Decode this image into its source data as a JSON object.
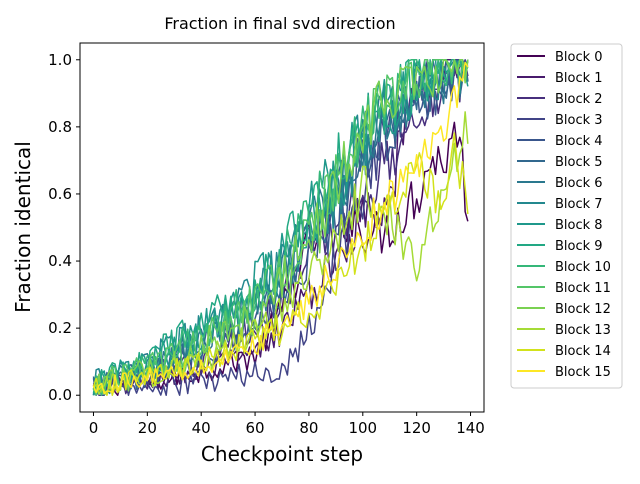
{
  "chart_data": {
    "type": "line",
    "title": "Fraction in final svd direction",
    "xlabel": "Checkpoint step",
    "ylabel": "Fraction identical",
    "xlim": [
      -5,
      145
    ],
    "ylim": [
      -0.05,
      1.05
    ],
    "xticks": [
      0,
      20,
      40,
      60,
      80,
      100,
      120,
      140
    ],
    "yticks": [
      0.0,
      0.2,
      0.4,
      0.6,
      0.8,
      1.0
    ],
    "xtick_labels": [
      "0",
      "20",
      "40",
      "60",
      "80",
      "100",
      "120",
      "140"
    ],
    "ytick_labels": [
      "0.0",
      "0.2",
      "0.4",
      "0.6",
      "0.8",
      "1.0"
    ],
    "legend_position": "outside-right",
    "colormap": "viridis",
    "x_range": [
      0,
      139
    ],
    "series": [
      {
        "name": "Block 0",
        "color": "#440154",
        "anchors": [
          [
            0,
            0.02
          ],
          [
            20,
            0.04
          ],
          [
            40,
            0.07
          ],
          [
            60,
            0.12
          ],
          [
            70,
            0.25
          ],
          [
            80,
            0.45
          ],
          [
            90,
            0.55
          ],
          [
            100,
            0.5
          ],
          [
            105,
            0.48
          ],
          [
            110,
            0.5
          ],
          [
            115,
            0.55
          ],
          [
            120,
            0.6
          ],
          [
            125,
            0.7
          ],
          [
            130,
            0.7
          ],
          [
            135,
            0.8
          ],
          [
            139,
            0.55
          ]
        ],
        "noise": 0.05
      },
      {
        "name": "Block 1",
        "color": "#481a6c",
        "anchors": [
          [
            0,
            0.01
          ],
          [
            20,
            0.04
          ],
          [
            40,
            0.07
          ],
          [
            60,
            0.12
          ],
          [
            70,
            0.2
          ],
          [
            80,
            0.3
          ],
          [
            90,
            0.4
          ],
          [
            100,
            0.55
          ],
          [
            110,
            0.6
          ],
          [
            120,
            0.95
          ],
          [
            125,
            1.0
          ],
          [
            130,
            1.0
          ],
          [
            139,
            1.0
          ]
        ],
        "noise": 0.05
      },
      {
        "name": "Block 2",
        "color": "#472f7d",
        "anchors": [
          [
            0,
            0.02
          ],
          [
            20,
            0.05
          ],
          [
            40,
            0.1
          ],
          [
            60,
            0.2
          ],
          [
            70,
            0.3
          ],
          [
            80,
            0.4
          ],
          [
            90,
            0.5
          ],
          [
            100,
            0.6
          ],
          [
            110,
            0.7
          ],
          [
            120,
            0.85
          ],
          [
            130,
            0.9
          ],
          [
            139,
            0.95
          ]
        ],
        "noise": 0.05
      },
      {
        "name": "Block 3",
        "color": "#414487",
        "anchors": [
          [
            0,
            0.01
          ],
          [
            20,
            0.02
          ],
          [
            40,
            0.04
          ],
          [
            50,
            0.05
          ],
          [
            60,
            0.06
          ],
          [
            70,
            0.08
          ],
          [
            80,
            0.2
          ],
          [
            90,
            0.4
          ],
          [
            100,
            0.6
          ],
          [
            110,
            0.8
          ],
          [
            120,
            0.9
          ],
          [
            130,
            0.95
          ],
          [
            139,
            0.99
          ]
        ],
        "noise": 0.06
      },
      {
        "name": "Block 4",
        "color": "#39568c",
        "anchors": [
          [
            0,
            0.02
          ],
          [
            20,
            0.06
          ],
          [
            40,
            0.12
          ],
          [
            60,
            0.22
          ],
          [
            70,
            0.3
          ],
          [
            80,
            0.42
          ],
          [
            90,
            0.55
          ],
          [
            100,
            0.7
          ],
          [
            110,
            0.8
          ],
          [
            120,
            0.88
          ],
          [
            130,
            0.92
          ],
          [
            139,
            0.95
          ]
        ],
        "noise": 0.06
      },
      {
        "name": "Block 5",
        "color": "#31688e",
        "anchors": [
          [
            0,
            0.02
          ],
          [
            20,
            0.07
          ],
          [
            40,
            0.14
          ],
          [
            60,
            0.24
          ],
          [
            70,
            0.32
          ],
          [
            80,
            0.45
          ],
          [
            90,
            0.58
          ],
          [
            100,
            0.72
          ],
          [
            110,
            0.82
          ],
          [
            120,
            0.9
          ],
          [
            130,
            0.94
          ],
          [
            139,
            0.96
          ]
        ],
        "noise": 0.06
      },
      {
        "name": "Block 6",
        "color": "#2a788e",
        "anchors": [
          [
            0,
            0.03
          ],
          [
            20,
            0.08
          ],
          [
            40,
            0.16
          ],
          [
            60,
            0.26
          ],
          [
            70,
            0.35
          ],
          [
            80,
            0.48
          ],
          [
            90,
            0.6
          ],
          [
            100,
            0.75
          ],
          [
            110,
            0.85
          ],
          [
            120,
            0.92
          ],
          [
            130,
            0.95
          ],
          [
            139,
            0.97
          ]
        ],
        "noise": 0.07
      },
      {
        "name": "Block 7",
        "color": "#23888e",
        "anchors": [
          [
            0,
            0.03
          ],
          [
            20,
            0.09
          ],
          [
            40,
            0.18
          ],
          [
            60,
            0.3
          ],
          [
            70,
            0.38
          ],
          [
            80,
            0.5
          ],
          [
            90,
            0.62
          ],
          [
            100,
            0.75
          ],
          [
            110,
            0.85
          ],
          [
            120,
            0.92
          ],
          [
            130,
            0.96
          ],
          [
            139,
            0.98
          ]
        ],
        "noise": 0.07
      },
      {
        "name": "Block 8",
        "color": "#1f988b",
        "anchors": [
          [
            0,
            0.03
          ],
          [
            20,
            0.09
          ],
          [
            40,
            0.18
          ],
          [
            60,
            0.32
          ],
          [
            70,
            0.4
          ],
          [
            80,
            0.52
          ],
          [
            90,
            0.64
          ],
          [
            100,
            0.78
          ],
          [
            110,
            0.86
          ],
          [
            120,
            0.92
          ],
          [
            130,
            0.96
          ],
          [
            139,
            0.98
          ]
        ],
        "noise": 0.07
      },
      {
        "name": "Block 9",
        "color": "#22a884",
        "anchors": [
          [
            0,
            0.03
          ],
          [
            20,
            0.1
          ],
          [
            40,
            0.2
          ],
          [
            60,
            0.33
          ],
          [
            70,
            0.42
          ],
          [
            80,
            0.54
          ],
          [
            90,
            0.66
          ],
          [
            100,
            0.8
          ],
          [
            110,
            0.88
          ],
          [
            120,
            0.94
          ],
          [
            130,
            0.97
          ],
          [
            139,
            0.99
          ]
        ],
        "noise": 0.07
      },
      {
        "name": "Block 10",
        "color": "#35b779",
        "anchors": [
          [
            0,
            0.03
          ],
          [
            20,
            0.09
          ],
          [
            40,
            0.18
          ],
          [
            60,
            0.3
          ],
          [
            70,
            0.4
          ],
          [
            80,
            0.52
          ],
          [
            90,
            0.66
          ],
          [
            100,
            0.8
          ],
          [
            110,
            0.9
          ],
          [
            120,
            0.95
          ],
          [
            130,
            0.98
          ],
          [
            139,
            1.0
          ]
        ],
        "noise": 0.06
      },
      {
        "name": "Block 11",
        "color": "#54c568",
        "anchors": [
          [
            0,
            0.03
          ],
          [
            20,
            0.08
          ],
          [
            40,
            0.16
          ],
          [
            60,
            0.28
          ],
          [
            70,
            0.38
          ],
          [
            80,
            0.5
          ],
          [
            90,
            0.64
          ],
          [
            100,
            0.8
          ],
          [
            110,
            0.9
          ],
          [
            120,
            0.95
          ],
          [
            130,
            0.98
          ],
          [
            139,
            1.0
          ]
        ],
        "noise": 0.06
      },
      {
        "name": "Block 12",
        "color": "#7ad151",
        "anchors": [
          [
            0,
            0.02
          ],
          [
            20,
            0.07
          ],
          [
            40,
            0.14
          ],
          [
            60,
            0.24
          ],
          [
            70,
            0.34
          ],
          [
            80,
            0.46
          ],
          [
            90,
            0.6
          ],
          [
            100,
            0.78
          ],
          [
            110,
            0.9
          ],
          [
            120,
            0.95
          ],
          [
            130,
            0.97
          ],
          [
            139,
            1.0
          ]
        ],
        "noise": 0.06
      },
      {
        "name": "Block 13",
        "color": "#a5db36",
        "anchors": [
          [
            0,
            0.02
          ],
          [
            20,
            0.05
          ],
          [
            40,
            0.1
          ],
          [
            60,
            0.18
          ],
          [
            70,
            0.25
          ],
          [
            80,
            0.35
          ],
          [
            90,
            0.48
          ],
          [
            100,
            0.62
          ],
          [
            110,
            0.55
          ],
          [
            120,
            0.4
          ],
          [
            130,
            0.6
          ],
          [
            139,
            0.8
          ]
        ],
        "noise": 0.05
      },
      {
        "name": "Block 14",
        "color": "#d2e21b",
        "anchors": [
          [
            0,
            0.02
          ],
          [
            20,
            0.05
          ],
          [
            40,
            0.1
          ],
          [
            60,
            0.16
          ],
          [
            70,
            0.2
          ],
          [
            80,
            0.25
          ],
          [
            90,
            0.32
          ],
          [
            100,
            0.45
          ],
          [
            110,
            0.6
          ],
          [
            120,
            0.7
          ],
          [
            130,
            0.6
          ],
          [
            135,
            0.75
          ],
          [
            139,
            0.5
          ]
        ],
        "noise": 0.05
      },
      {
        "name": "Block 15",
        "color": "#fde725",
        "anchors": [
          [
            0,
            0.02
          ],
          [
            10,
            0.04
          ],
          [
            20,
            0.05
          ],
          [
            40,
            0.08
          ],
          [
            60,
            0.15
          ],
          [
            70,
            0.22
          ],
          [
            80,
            0.28
          ],
          [
            90,
            0.38
          ],
          [
            100,
            0.48
          ],
          [
            110,
            0.6
          ],
          [
            120,
            0.68
          ],
          [
            125,
            0.72
          ],
          [
            130,
            0.8
          ],
          [
            135,
            0.9
          ],
          [
            139,
            0.99
          ]
        ],
        "noise": 0.04
      }
    ]
  }
}
